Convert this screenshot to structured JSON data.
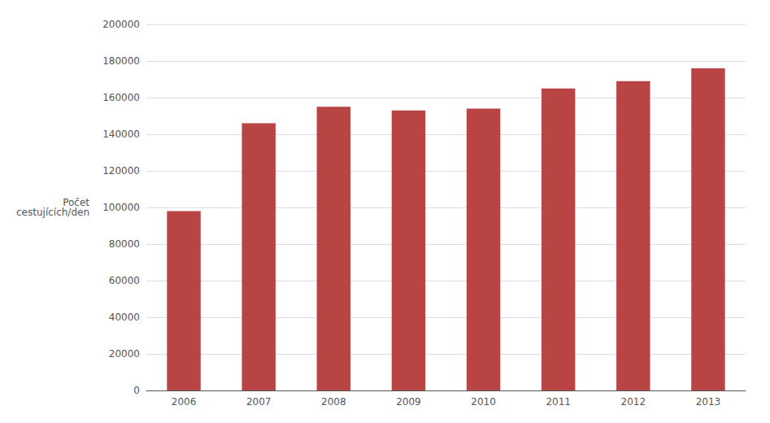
{
  "chart_data": {
    "type": "bar",
    "categories": [
      "2006",
      "2007",
      "2008",
      "2009",
      "2010",
      "2011",
      "2012",
      "2013"
    ],
    "values": [
      98000,
      146000,
      155000,
      153000,
      154000,
      165000,
      169000,
      176000
    ],
    "color": "#b94444",
    "ylabel": "Počet\ncestujících/den",
    "ylim": [
      0,
      200000
    ],
    "yticks": [
      0,
      20000,
      40000,
      60000,
      80000,
      100000,
      120000,
      140000,
      160000,
      180000,
      200000
    ],
    "grid": true
  }
}
